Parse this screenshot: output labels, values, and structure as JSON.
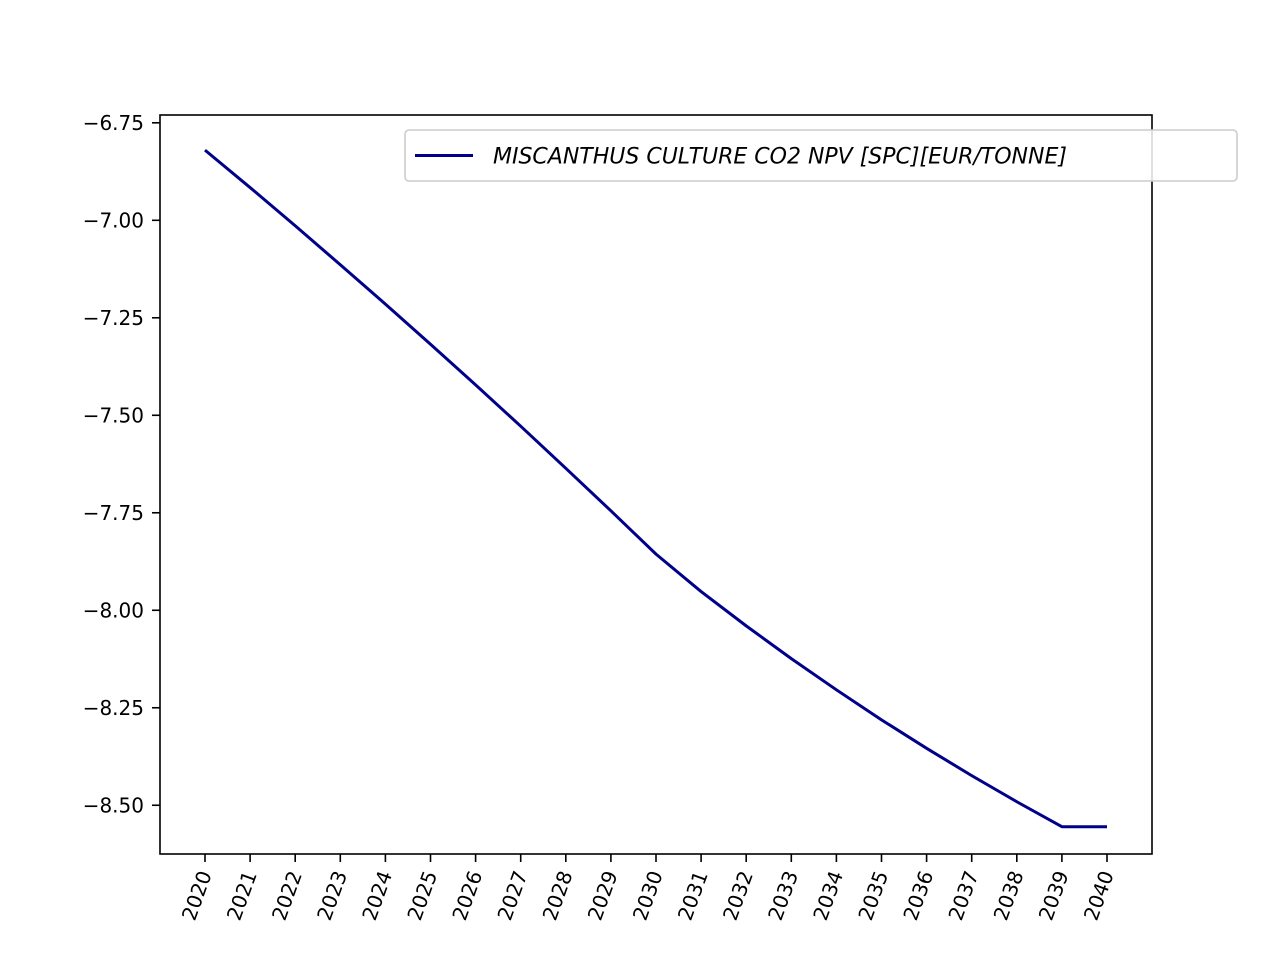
{
  "chart_data": {
    "type": "line",
    "title": "",
    "xlabel": "",
    "ylabel": "",
    "x": [
      "2020",
      "2021",
      "2022",
      "2023",
      "2024",
      "2025",
      "2026",
      "2027",
      "2028",
      "2029",
      "2030",
      "2031",
      "2032",
      "2033",
      "2034",
      "2035",
      "2036",
      "2037",
      "2038",
      "2039",
      "2040"
    ],
    "series": [
      {
        "name": "MISCANTHUS CULTURE CO2 NPV [SPC][EUR/TONNE]",
        "color": "#00008b",
        "values": [
          -6.82,
          -6.916,
          -7.014,
          -7.114,
          -7.215,
          -7.318,
          -7.422,
          -7.528,
          -7.636,
          -7.745,
          -7.856,
          -7.952,
          -8.04,
          -8.124,
          -8.204,
          -8.281,
          -8.354,
          -8.424,
          -8.491,
          -8.555,
          -8.555
        ]
      }
    ],
    "ylim": [
      -8.625,
      -6.73
    ],
    "yticks": [
      "−6.75",
      "−7.00",
      "−7.25",
      "−7.50",
      "−7.75",
      "−8.00",
      "−8.25",
      "−8.50"
    ],
    "ytick_values": [
      -6.75,
      -7.0,
      -7.25,
      -7.5,
      -7.75,
      -8.0,
      -8.25,
      -8.5
    ],
    "grid": false,
    "legend_position": "top-right"
  }
}
